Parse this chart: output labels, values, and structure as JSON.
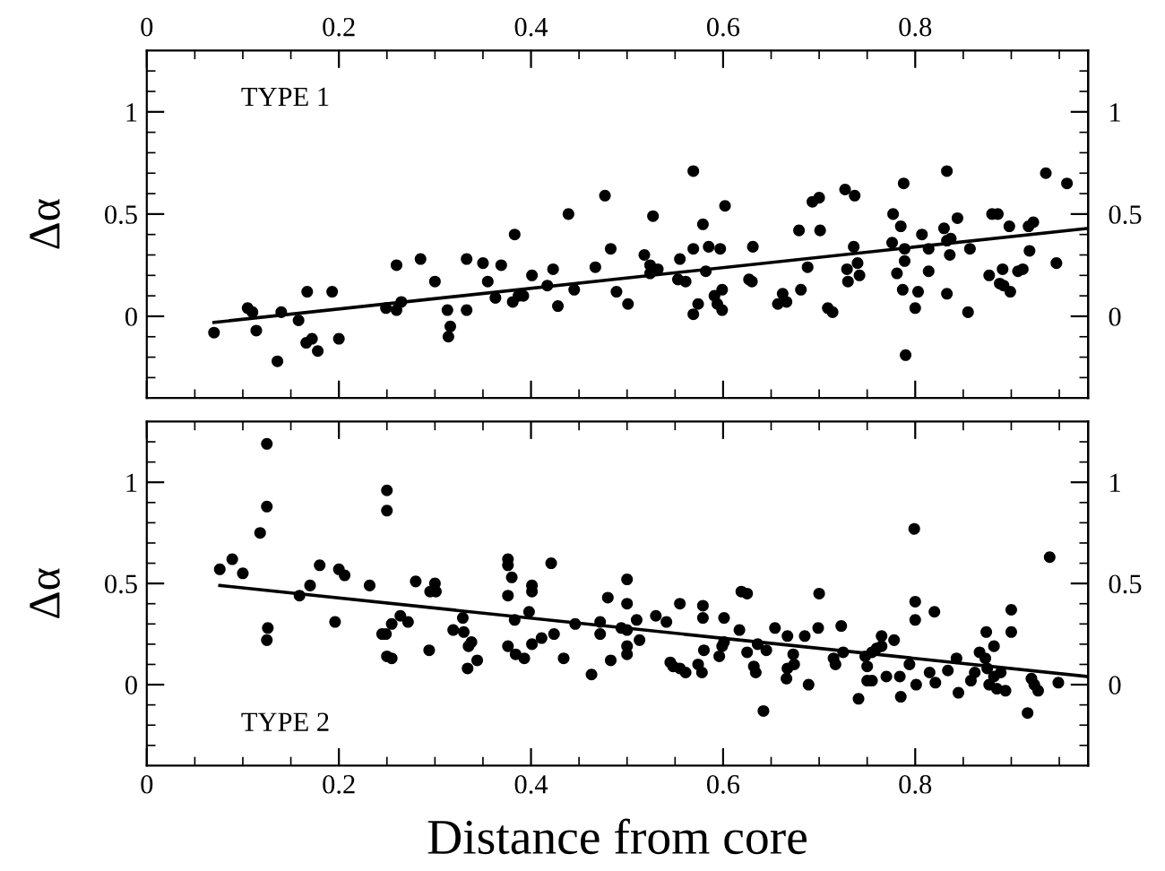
{
  "chart_data": [
    {
      "type": "scatter",
      "ylabel": "Δα",
      "annotations": [
        "TYPE 1"
      ],
      "grid": false,
      "xlim": [
        0,
        0.98
      ],
      "xticks": [
        0,
        {
          "value": 0.05,
          "label": null
        },
        {
          "value": 0.1,
          "label": null
        },
        {
          "value": 0.15,
          "label": null
        },
        0.2,
        {
          "value": 0.25,
          "label": null
        },
        {
          "value": 0.3,
          "label": null
        },
        {
          "value": 0.35,
          "label": null
        },
        0.4,
        {
          "value": 0.45,
          "label": null
        },
        {
          "value": 0.5,
          "label": null
        },
        {
          "value": 0.55,
          "label": null
        },
        0.6,
        {
          "value": 0.65,
          "label": null
        },
        {
          "value": 0.7,
          "label": null
        },
        {
          "value": 0.75,
          "label": null
        },
        0.8,
        {
          "value": 0.85,
          "label": null
        },
        {
          "value": 0.9,
          "label": null
        },
        {
          "value": 0.95,
          "label": null
        }
      ],
      "ylim": [
        -0.4,
        1.3
      ],
      "yticks": [
        {
          "value": -0.3,
          "label": null
        },
        {
          "value": -0.2,
          "label": null
        },
        {
          "value": -0.1,
          "label": null
        },
        0,
        {
          "value": 0.1,
          "label": null
        },
        {
          "value": 0.2,
          "label": null
        },
        {
          "value": 0.3,
          "label": null
        },
        {
          "value": 0.4,
          "label": null
        },
        0.5,
        {
          "value": 0.6,
          "label": null
        },
        {
          "value": 0.7,
          "label": null
        },
        {
          "value": 0.8,
          "label": null
        },
        {
          "value": 0.9,
          "label": null
        },
        1,
        {
          "value": 1.1,
          "label": null
        },
        {
          "value": 1.2,
          "label": null
        }
      ],
      "y2lim": [
        -0.4,
        1.3
      ],
      "y2ticks": [
        {
          "value": -0.3,
          "label": null
        },
        {
          "value": -0.2,
          "label": null
        },
        {
          "value": -0.1,
          "label": null
        },
        0,
        {
          "value": 0.1,
          "label": null
        },
        {
          "value": 0.2,
          "label": null
        },
        {
          "value": 0.3,
          "label": null
        },
        {
          "value": 0.4,
          "label": null
        },
        0.5,
        {
          "value": 0.6,
          "label": null
        },
        {
          "value": 0.7,
          "label": null
        },
        {
          "value": 0.8,
          "label": null
        },
        {
          "value": 0.9,
          "label": null
        },
        1,
        {
          "value": 1.1,
          "label": null
        },
        {
          "value": 1.2,
          "label": null
        }
      ],
      "series": [
        {
          "color": "#000000",
          "marker": "circle",
          "x": [
            0.07,
            0.105,
            0.11,
            0.114,
            0.136,
            0.14,
            0.158,
            0.167,
            0.166,
            0.172,
            0.178,
            0.193,
            0.2,
            0.249,
            0.26,
            0.26,
            0.265,
            0.285,
            0.3,
            0.313,
            0.316,
            0.314,
            0.333,
            0.333,
            0.35,
            0.355,
            0.363,
            0.369,
            0.383,
            0.381,
            0.387,
            0.392,
            0.401,
            0.417,
            0.423,
            0.428,
            0.439,
            0.445,
            0.467,
            0.477,
            0.483,
            0.489,
            0.501,
            0.518,
            0.527,
            0.524,
            0.524,
            0.532,
            0.555,
            0.553,
            0.561,
            0.569,
            0.569,
            0.574,
            0.569,
            0.579,
            0.582,
            0.585,
            0.591,
            0.594,
            0.599,
            0.597,
            0.599,
            0.602,
            0.627,
            0.631,
            0.63,
            0.657,
            0.662,
            0.666,
            0.679,
            0.681,
            0.688,
            0.693,
            0.7,
            0.701,
            0.709,
            0.714,
            0.727,
            0.737,
            0.736,
            0.74,
            0.73,
            0.729,
            0.742,
            0.777,
            0.776,
            0.785,
            0.781,
            0.788,
            0.789,
            0.789,
            0.787,
            0.79,
            0.8,
            0.803,
            0.807,
            0.814,
            0.814,
            0.83,
            0.833,
            0.833,
            0.833,
            0.837,
            0.836,
            0.844,
            0.857,
            0.855,
            0.88,
            0.886,
            0.877,
            0.891,
            0.888,
            0.892,
            0.898,
            0.899,
            0.907,
            0.912,
            0.919,
            0.918,
            0.923,
            0.936,
            0.947,
            0.958
          ],
          "values": [
            -0.08,
            0.04,
            0.02,
            -0.07,
            -0.22,
            0.02,
            -0.02,
            0.12,
            -0.13,
            -0.11,
            -0.17,
            0.12,
            -0.11,
            0.04,
            0.25,
            0.03,
            0.07,
            0.28,
            0.17,
            0.03,
            -0.05,
            -0.1,
            0.28,
            0.03,
            0.26,
            0.17,
            0.09,
            0.25,
            0.4,
            0.07,
            0.1,
            0.1,
            0.2,
            0.15,
            0.23,
            0.05,
            0.5,
            0.13,
            0.24,
            0.59,
            0.33,
            0.12,
            0.06,
            0.3,
            0.49,
            0.25,
            0.21,
            0.23,
            0.28,
            0.18,
            0.17,
            0.71,
            0.33,
            0.06,
            0.01,
            0.45,
            0.22,
            0.34,
            0.1,
            0.06,
            0.13,
            0.33,
            0.03,
            0.54,
            0.18,
            0.34,
            0.17,
            0.06,
            0.11,
            0.07,
            0.42,
            0.13,
            0.24,
            0.56,
            0.58,
            0.42,
            0.04,
            0.02,
            0.62,
            0.59,
            0.34,
            0.26,
            0.17,
            0.23,
            0.2,
            0.5,
            0.36,
            0.44,
            0.21,
            0.65,
            0.33,
            0.27,
            0.13,
            -0.19,
            0.04,
            0.12,
            0.4,
            0.33,
            0.22,
            0.43,
            0.71,
            0.11,
            0.37,
            0.38,
            0.3,
            0.48,
            0.33,
            0.02,
            0.5,
            0.5,
            0.2,
            0.23,
            0.16,
            0.15,
            0.44,
            0.12,
            0.22,
            0.23,
            0.32,
            0.44,
            0.46,
            0.7,
            0.26,
            0.65
          ]
        },
        {
          "type": "line",
          "color": "#000000",
          "x": [
            0.07,
            0.98
          ],
          "values": [
            -0.03,
            0.43
          ]
        }
      ]
    },
    {
      "type": "scatter",
      "ylabel": "Δα",
      "xlabel": "Distance from core",
      "annotations": [
        "TYPE 2"
      ],
      "grid": false,
      "xlim": [
        0,
        0.98
      ],
      "xticks": [
        0,
        {
          "value": 0.05,
          "label": null
        },
        {
          "value": 0.1,
          "label": null
        },
        {
          "value": 0.15,
          "label": null
        },
        0.2,
        {
          "value": 0.25,
          "label": null
        },
        {
          "value": 0.3,
          "label": null
        },
        {
          "value": 0.35,
          "label": null
        },
        0.4,
        {
          "value": 0.45,
          "label": null
        },
        {
          "value": 0.5,
          "label": null
        },
        {
          "value": 0.55,
          "label": null
        },
        0.6,
        {
          "value": 0.65,
          "label": null
        },
        {
          "value": 0.7,
          "label": null
        },
        {
          "value": 0.75,
          "label": null
        },
        0.8,
        {
          "value": 0.85,
          "label": null
        },
        {
          "value": 0.9,
          "label": null
        },
        {
          "value": 0.95,
          "label": null
        }
      ],
      "ylim": [
        -0.4,
        1.3
      ],
      "yticks": [
        {
          "value": -0.3,
          "label": null
        },
        {
          "value": -0.2,
          "label": null
        },
        {
          "value": -0.1,
          "label": null
        },
        0,
        {
          "value": 0.1,
          "label": null
        },
        {
          "value": 0.2,
          "label": null
        },
        {
          "value": 0.3,
          "label": null
        },
        {
          "value": 0.4,
          "label": null
        },
        0.5,
        {
          "value": 0.6,
          "label": null
        },
        {
          "value": 0.7,
          "label": null
        },
        {
          "value": 0.8,
          "label": null
        },
        {
          "value": 0.9,
          "label": null
        },
        1,
        {
          "value": 1.1,
          "label": null
        },
        {
          "value": 1.2,
          "label": null
        }
      ],
      "y2lim": [
        -0.4,
        1.3
      ],
      "y2ticks": [
        {
          "value": -0.3,
          "label": null
        },
        {
          "value": -0.2,
          "label": null
        },
        {
          "value": -0.1,
          "label": null
        },
        0,
        {
          "value": 0.1,
          "label": null
        },
        {
          "value": 0.2,
          "label": null
        },
        {
          "value": 0.3,
          "label": null
        },
        {
          "value": 0.4,
          "label": null
        },
        0.5,
        {
          "value": 0.6,
          "label": null
        },
        {
          "value": 0.7,
          "label": null
        },
        {
          "value": 0.8,
          "label": null
        },
        {
          "value": 0.9,
          "label": null
        },
        1,
        {
          "value": 1.1,
          "label": null
        },
        {
          "value": 1.2,
          "label": null
        }
      ],
      "series": [
        {
          "color": "#000000",
          "marker": "circle",
          "x": [
            0.076,
            0.089,
            0.1,
            0.118,
            0.125,
            0.125,
            0.126,
            0.125,
            0.159,
            0.17,
            0.18,
            0.196,
            0.2,
            0.206,
            0.232,
            0.245,
            0.249,
            0.25,
            0.25,
            0.25,
            0.255,
            0.255,
            0.264,
            0.272,
            0.28,
            0.294,
            0.295,
            0.3,
            0.301,
            0.319,
            0.329,
            0.33,
            0.334,
            0.335,
            0.338,
            0.344,
            0.376,
            0.376,
            0.376,
            0.376,
            0.38,
            0.383,
            0.384,
            0.393,
            0.398,
            0.401,
            0.401,
            0.401,
            0.411,
            0.421,
            0.424,
            0.434,
            0.446,
            0.463,
            0.472,
            0.472,
            0.48,
            0.483,
            0.494,
            0.5,
            0.5,
            0.5,
            0.5,
            0.5,
            0.51,
            0.513,
            0.53,
            0.541,
            0.545,
            0.548,
            0.555,
            0.555,
            0.561,
            0.574,
            0.578,
            0.579,
            0.579,
            0.58,
            0.596,
            0.599,
            0.601,
            0.601,
            0.617,
            0.619,
            0.625,
            0.625,
            0.632,
            0.634,
            0.636,
            0.642,
            0.645,
            0.654,
            0.666,
            0.667,
            0.667,
            0.673,
            0.674,
            0.685,
            0.689,
            0.699,
            0.7,
            0.715,
            0.717,
            0.723,
            0.725,
            0.741,
            0.748,
            0.75,
            0.75,
            0.755,
            0.755,
            0.76,
            0.765,
            0.765,
            0.77,
            0.778,
            0.784,
            0.785,
            0.794,
            0.799,
            0.8,
            0.8,
            0.801,
            0.815,
            0.82,
            0.821,
            0.834,
            0.843,
            0.845,
            0.858,
            0.862,
            0.867,
            0.873,
            0.874,
            0.875,
            0.877,
            0.882,
            0.882,
            0.885,
            0.889,
            0.894,
            0.9,
            0.9,
            0.917,
            0.921,
            0.924,
            0.928,
            0.94,
            0.949
          ],
          "values": [
            0.57,
            0.62,
            0.55,
            0.75,
            1.19,
            0.88,
            0.28,
            0.22,
            0.44,
            0.49,
            0.59,
            0.31,
            0.57,
            0.54,
            0.49,
            0.25,
            0.25,
            0.96,
            0.86,
            0.14,
            0.13,
            0.3,
            0.34,
            0.31,
            0.51,
            0.17,
            0.46,
            0.5,
            0.46,
            0.27,
            0.33,
            0.26,
            0.08,
            0.19,
            0.21,
            0.12,
            0.62,
            0.59,
            0.44,
            0.19,
            0.53,
            0.32,
            0.15,
            0.13,
            0.36,
            0.49,
            0.46,
            0.2,
            0.23,
            0.6,
            0.25,
            0.13,
            0.3,
            0.05,
            0.31,
            0.25,
            0.43,
            0.12,
            0.28,
            0.52,
            0.4,
            0.27,
            0.19,
            0.15,
            0.32,
            0.22,
            0.34,
            0.31,
            0.11,
            0.09,
            0.4,
            0.08,
            0.06,
            0.1,
            0.06,
            0.39,
            0.33,
            0.17,
            0.14,
            0.19,
            0.21,
            0.33,
            0.27,
            0.46,
            0.45,
            0.16,
            0.09,
            0.06,
            0.2,
            -0.13,
            0.17,
            0.28,
            0.03,
            0.24,
            0.08,
            0.15,
            0.1,
            0.24,
            0.0,
            0.28,
            0.45,
            0.13,
            0.1,
            0.29,
            0.16,
            -0.07,
            0.14,
            0.09,
            0.02,
            0.02,
            0.16,
            0.18,
            0.24,
            0.19,
            0.04,
            0.22,
            0.04,
            -0.06,
            0.1,
            0.77,
            0.41,
            0.32,
            0.0,
            0.06,
            0.36,
            0.01,
            0.07,
            0.13,
            -0.04,
            0.02,
            0.06,
            0.16,
            0.13,
            0.26,
            0.08,
            0.0,
            0.19,
            0.04,
            -0.02,
            0.06,
            -0.03,
            0.37,
            0.26,
            -0.14,
            0.03,
            0.0,
            -0.03,
            0.63,
            0.01
          ]
        },
        {
          "type": "line",
          "color": "#000000",
          "x": [
            0.076,
            0.98
          ],
          "values": [
            0.49,
            0.04
          ]
        }
      ]
    }
  ]
}
